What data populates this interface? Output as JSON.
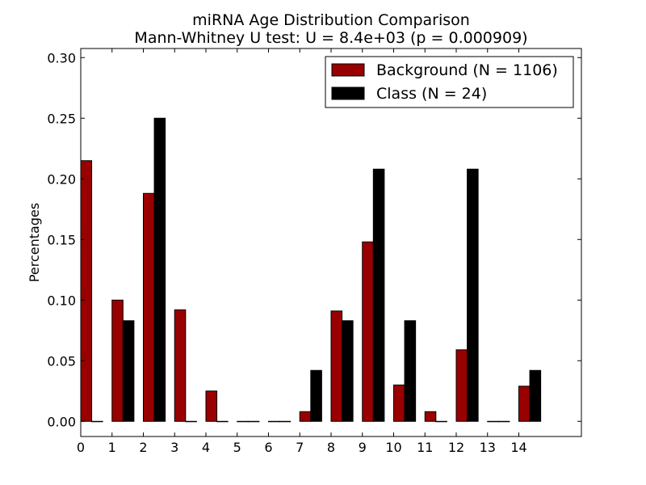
{
  "chart_data": {
    "type": "bar",
    "title": "miRNA Age Distribution Comparison",
    "subtitle": "Mann-Whitney U test: U = 8.4e+03 (p = 0.000909)",
    "xlabel": "",
    "ylabel": "Percentages",
    "categories": [
      "0",
      "1",
      "2",
      "3",
      "4",
      "5",
      "6",
      "7",
      "8",
      "9",
      "10",
      "11",
      "12",
      "13",
      "14"
    ],
    "xlim": [
      0,
      16
    ],
    "ylim": [
      -0.0125,
      0.3075
    ],
    "yticks": [
      "0.00",
      "0.05",
      "0.10",
      "0.15",
      "0.20",
      "0.25",
      "0.30"
    ],
    "ytick_values": [
      0,
      0.05,
      0.1,
      0.15,
      0.2,
      0.25,
      0.3
    ],
    "grid": false,
    "legend_position": "top-right",
    "series": [
      {
        "name": "Background (N = 1106)",
        "color": "#990000",
        "values": [
          0.215,
          0.1,
          0.188,
          0.092,
          0.025,
          0.0,
          0.0,
          0.008,
          0.091,
          0.148,
          0.03,
          0.008,
          0.059,
          0.0,
          0.029
        ]
      },
      {
        "name": "Class (N = 24)",
        "color": "#000000",
        "values": [
          0.0,
          0.083,
          0.25,
          0.0,
          0.0,
          0.0,
          0.0,
          0.042,
          0.083,
          0.208,
          0.083,
          0.0,
          0.208,
          0.0,
          0.042
        ]
      }
    ]
  }
}
